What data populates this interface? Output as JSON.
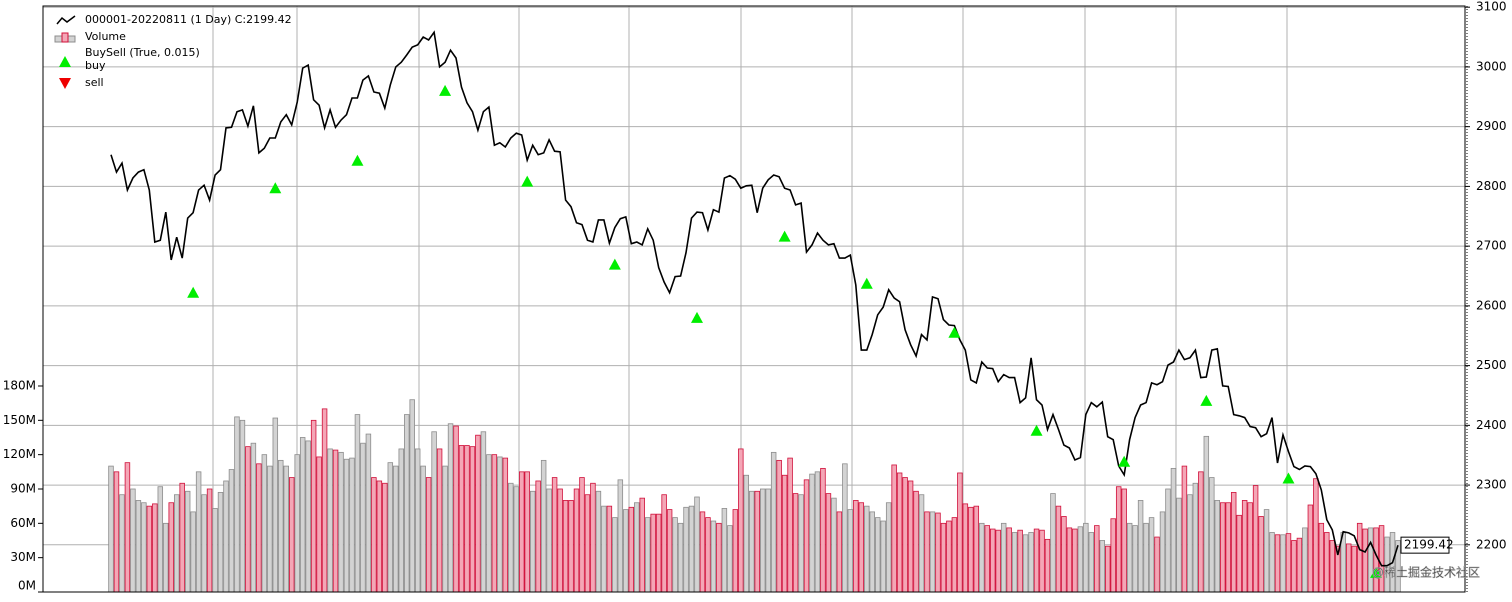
{
  "chart_data": {
    "type": "line",
    "series": [
      {
        "name": "000001-20220811 (1 Day) C:2199.42",
        "color": "#000000",
        "values": [
          2853,
          2824,
          2839,
          2794,
          2814,
          2824,
          2828,
          2794,
          2707,
          2710,
          2757,
          2677,
          2715,
          2680,
          2747,
          2756,
          2794,
          2802,
          2777,
          2819,
          2828,
          2898,
          2899,
          2925,
          2928,
          2901,
          2935,
          2856,
          2864,
          2881,
          2881,
          2908,
          2920,
          2903,
          2941,
          2998,
          3003,
          2945,
          2936,
          2898,
          2928,
          2899,
          2911,
          2920,
          2948,
          2948,
          2978,
          2985,
          2958,
          2956,
          2931,
          2970,
          3000,
          3008,
          3020,
          3033,
          3037,
          3050,
          3045,
          3058,
          3000,
          3008,
          3028,
          3015,
          2966,
          2940,
          2925,
          2894,
          2925,
          2933,
          2869,
          2873,
          2866,
          2881,
          2889,
          2886,
          2844,
          2869,
          2853,
          2856,
          2878,
          2859,
          2858,
          2777,
          2766,
          2739,
          2736,
          2710,
          2707,
          2744,
          2744,
          2705,
          2731,
          2746,
          2749,
          2704,
          2707,
          2702,
          2729,
          2710,
          2664,
          2640,
          2622,
          2649,
          2650,
          2689,
          2747,
          2757,
          2756,
          2727,
          2761,
          2757,
          2814,
          2818,
          2812,
          2797,
          2801,
          2802,
          2756,
          2797,
          2811,
          2819,
          2816,
          2797,
          2794,
          2769,
          2772,
          2690,
          2702,
          2722,
          2710,
          2702,
          2704,
          2680,
          2680,
          2685,
          2635,
          2526,
          2526,
          2552,
          2585,
          2598,
          2627,
          2613,
          2607,
          2560,
          2535,
          2516,
          2552,
          2543,
          2615,
          2612,
          2577,
          2568,
          2567,
          2543,
          2526,
          2476,
          2471,
          2506,
          2496,
          2495,
          2473,
          2485,
          2480,
          2480,
          2438,
          2446,
          2513,
          2443,
          2434,
          2393,
          2418,
          2393,
          2367,
          2362,
          2342,
          2346,
          2418,
          2438,
          2431,
          2439,
          2381,
          2376,
          2332,
          2317,
          2376,
          2413,
          2434,
          2438,
          2471,
          2468,
          2473,
          2501,
          2506,
          2526,
          2510,
          2513,
          2526,
          2480,
          2481,
          2526,
          2528,
          2466,
          2465,
          2418,
          2416,
          2413,
          2398,
          2396,
          2381,
          2386,
          2413,
          2337,
          2384,
          2356,
          2331,
          2326,
          2332,
          2331,
          2319,
          2292,
          2242,
          2225,
          2183,
          2222,
          2220,
          2215,
          2192,
          2188,
          2204,
          2183,
          2165,
          2165,
          2170,
          2199.42
        ]
      },
      {
        "name": "Volume",
        "type": "bar",
        "axis": "y2",
        "color": "#d3d3d3",
        "edge": "#8c8c8c",
        "down_color": "#f4a6b6",
        "down_edge": "#d0103a",
        "values": [
          110000000,
          105000000,
          85000000,
          113000000,
          90000000,
          80000000,
          78000000,
          75000000,
          77000000,
          92000000,
          60000000,
          78000000,
          85000000,
          95000000,
          88000000,
          70000000,
          105000000,
          85000000,
          90000000,
          73000000,
          87000000,
          97000000,
          107000000,
          153000000,
          150000000,
          127000000,
          130000000,
          112000000,
          120000000,
          110000000,
          152000000,
          115000000,
          110000000,
          100000000,
          120000000,
          135000000,
          132000000,
          150000000,
          118000000,
          160000000,
          125000000,
          124000000,
          122000000,
          116000000,
          117000000,
          155000000,
          130000000,
          138000000,
          100000000,
          97000000,
          95000000,
          113000000,
          110000000,
          125000000,
          155000000,
          168000000,
          125000000,
          110000000,
          100000000,
          140000000,
          125000000,
          110000000,
          147000000,
          145000000,
          128000000,
          128000000,
          127000000,
          137000000,
          140000000,
          120000000,
          120000000,
          118000000,
          117000000,
          95000000,
          92000000,
          105000000,
          105000000,
          88000000,
          97000000,
          115000000,
          90000000,
          100000000,
          90000000,
          80000000,
          80000000,
          90000000,
          100000000,
          85000000,
          95000000,
          88000000,
          75000000,
          75000000,
          65000000,
          98000000,
          72000000,
          74000000,
          78000000,
          82000000,
          65000000,
          68000000,
          68000000,
          85000000,
          72000000,
          65000000,
          60000000,
          74000000,
          75000000,
          83000000,
          70000000,
          65000000,
          62000000,
          60000000,
          73000000,
          58000000,
          72000000,
          125000000,
          102000000,
          88000000,
          88000000,
          90000000,
          90000000,
          122000000,
          115000000,
          102000000,
          117000000,
          86000000,
          85000000,
          98000000,
          103000000,
          105000000,
          108000000,
          86000000,
          82000000,
          70000000,
          112000000,
          72000000,
          80000000,
          78000000,
          75000000,
          70000000,
          65000000,
          62000000,
          78000000,
          111000000,
          104000000,
          100000000,
          97000000,
          88000000,
          85000000,
          70000000,
          70000000,
          69000000,
          60000000,
          62000000,
          65000000,
          104000000,
          77000000,
          74000000,
          75000000,
          60000000,
          58000000,
          55000000,
          54000000,
          60000000,
          56000000,
          52000000,
          54000000,
          50000000,
          52000000,
          55000000,
          54000000,
          46000000,
          86000000,
          75000000,
          66000000,
          56000000,
          55000000,
          57000000,
          60000000,
          52000000,
          58000000,
          45000000,
          40000000,
          64000000,
          92000000,
          90000000,
          60000000,
          58000000,
          80000000,
          60000000,
          65000000,
          48000000,
          70000000,
          90000000,
          108000000,
          82000000,
          110000000,
          85000000,
          95000000,
          105000000,
          136000000,
          100000000,
          80000000,
          78000000,
          78000000,
          87000000,
          67000000,
          80000000,
          78000000,
          93000000,
          66000000,
          72000000,
          52000000,
          50000000,
          50000000,
          51000000,
          45000000,
          47000000,
          56000000,
          76000000,
          99000000,
          60000000,
          52000000,
          45000000,
          40000000,
          52000000,
          42000000,
          40000000,
          60000000,
          55000000,
          56000000,
          56000000,
          58000000,
          48000000,
          52000000,
          45000000
        ]
      },
      {
        "name": "buy",
        "type": "scatter",
        "marker": "^",
        "color": "#00ee00",
        "x": [
          15,
          30,
          45,
          61,
          76,
          92,
          107,
          123,
          138,
          154,
          169,
          185,
          200,
          215,
          231
        ],
        "values": [
          2622,
          2797,
          2843,
          2960,
          2808,
          2669,
          2580,
          2716,
          2637,
          2555,
          2391,
          2339,
          2441,
          2311,
          2153
        ]
      },
      {
        "name": "sell",
        "type": "scatter",
        "marker": "v",
        "color": "#ee0000",
        "x": [],
        "values": []
      }
    ],
    "indicator_label": "BuySell (True, 0.015)",
    "ylim": [
      2121,
      3102
    ],
    "yticks": [
      2200,
      2300,
      2400,
      2500,
      2600,
      2700,
      2800,
      2900,
      3000,
      3100
    ],
    "y2lim": [
      0,
      512000000
    ],
    "y2ticks": [
      {
        "value": 0,
        "label": "0M"
      },
      {
        "value": 30000000,
        "label": "30M"
      },
      {
        "value": 60000000,
        "label": "60M"
      },
      {
        "value": 90000000,
        "label": "90M"
      },
      {
        "value": 120000000,
        "label": "120M"
      },
      {
        "value": 150000000,
        "label": "150M"
      },
      {
        "value": 180000000,
        "label": "180M"
      }
    ],
    "grid": true,
    "watermark": "@稀土掘金技术社区"
  }
}
